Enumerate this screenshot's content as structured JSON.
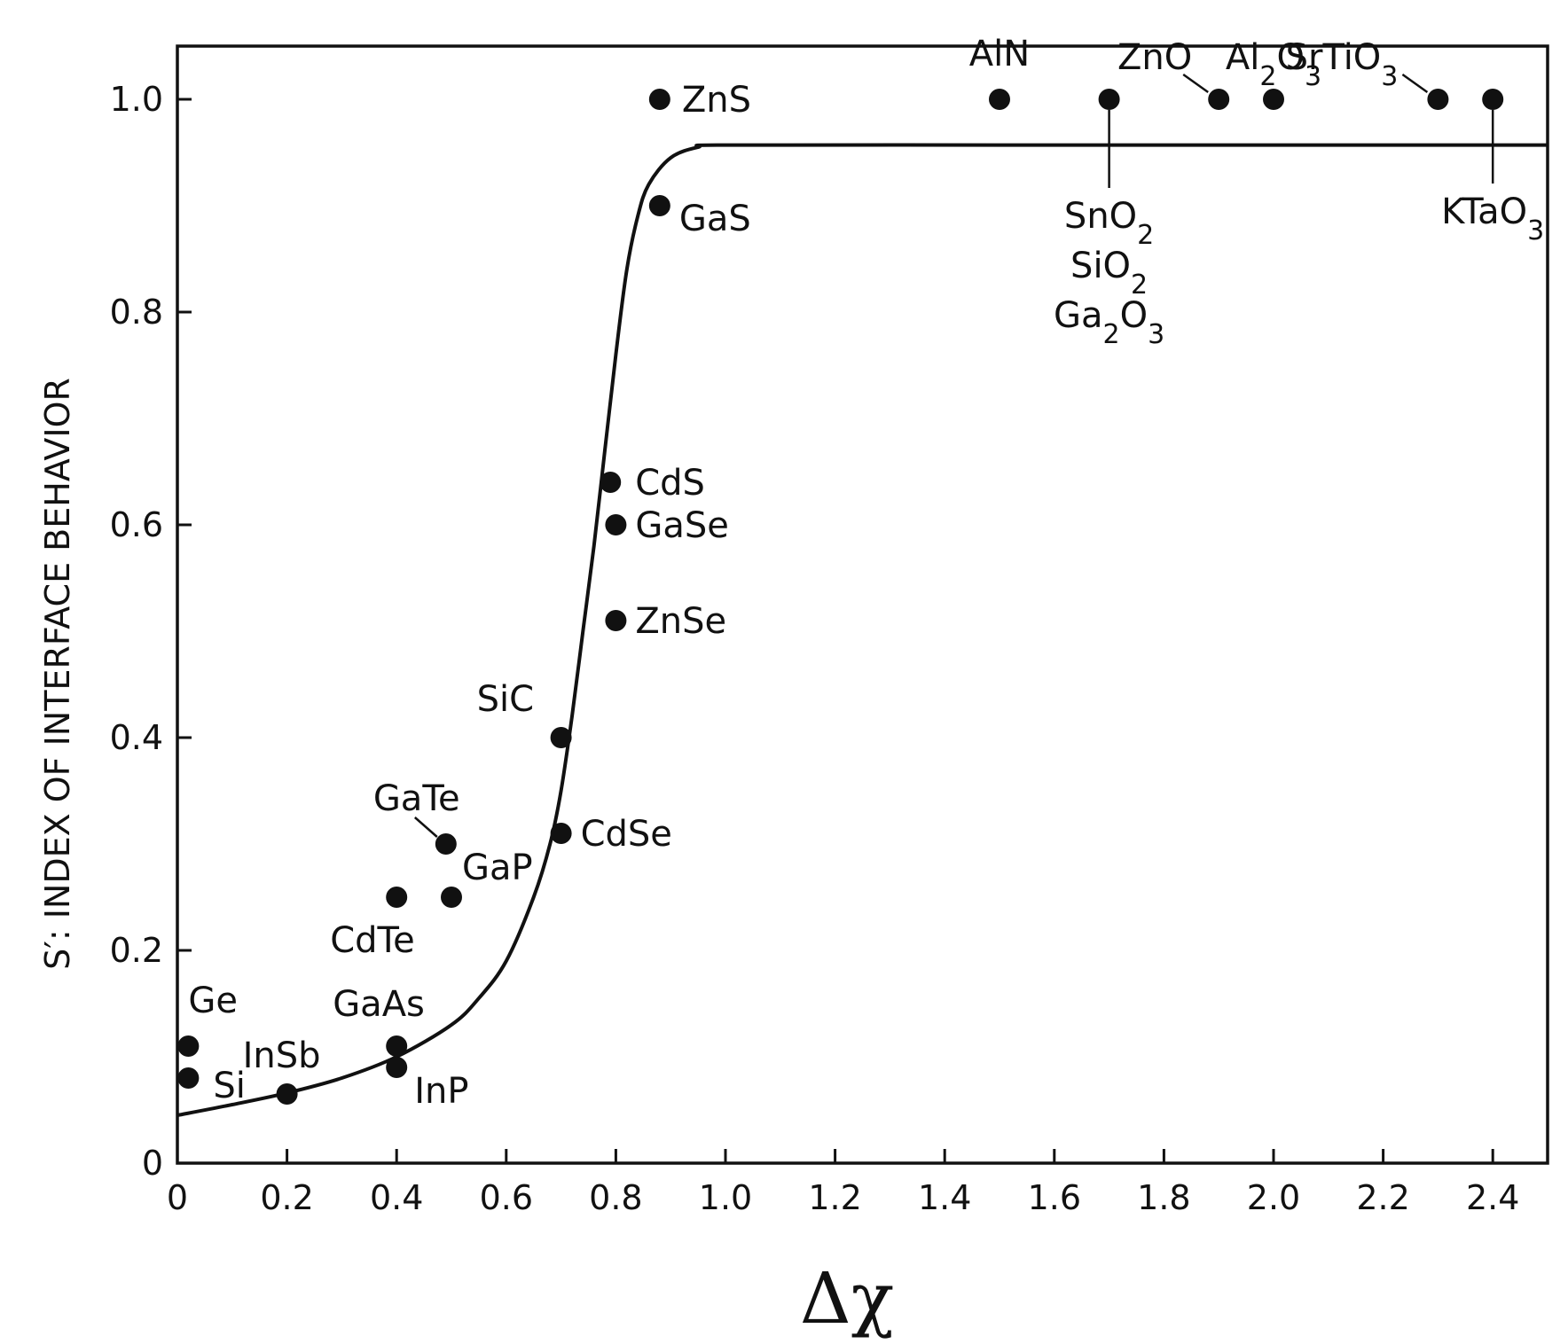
{
  "chart_data": {
    "type": "scatter",
    "xlabel": "Δχ",
    "ylabel": "S′: INDEX OF INTERFACE BEHAVIOR",
    "xlim": [
      0,
      2.5
    ],
    "ylim": [
      0,
      1.05
    ],
    "xticks": [
      "0",
      "0.2",
      "0.4",
      "0.6",
      "0.8",
      "1.0",
      "1.2",
      "1.4",
      "1.6",
      "1.8",
      "2.0",
      "2.2",
      "2.4"
    ],
    "yticks": [
      "0",
      "0.2",
      "0.4",
      "0.6",
      "0.8",
      "1.0"
    ],
    "points": [
      {
        "label": "Ge",
        "x": 0.02,
        "y": 0.11
      },
      {
        "label": "Si",
        "x": 0.02,
        "y": 0.08
      },
      {
        "label": "InSb",
        "x": 0.2,
        "y": 0.065
      },
      {
        "label": "GaAs",
        "x": 0.4,
        "y": 0.11
      },
      {
        "label": "InP",
        "x": 0.4,
        "y": 0.09
      },
      {
        "label": "CdTe",
        "x": 0.4,
        "y": 0.25
      },
      {
        "label": "GaTe",
        "x": 0.49,
        "y": 0.3
      },
      {
        "label": "GaP",
        "x": 0.5,
        "y": 0.25
      },
      {
        "label": "CdSe",
        "x": 0.7,
        "y": 0.31
      },
      {
        "label": "SiC",
        "x": 0.7,
        "y": 0.4
      },
      {
        "label": "ZnSe",
        "x": 0.8,
        "y": 0.51
      },
      {
        "label": "GaSe",
        "x": 0.8,
        "y": 0.6
      },
      {
        "label": "CdS",
        "x": 0.79,
        "y": 0.64
      },
      {
        "label": "GaS",
        "x": 0.88,
        "y": 0.9
      },
      {
        "label": "ZnS",
        "x": 0.88,
        "y": 1.0
      },
      {
        "label": "AlN",
        "x": 1.5,
        "y": 1.0
      },
      {
        "label": "SnO2 / SiO2 / Ga2O3",
        "x": 1.7,
        "y": 1.0
      },
      {
        "label": "ZnO",
        "x": 1.9,
        "y": 1.0
      },
      {
        "label": "Al2O3",
        "x": 2.0,
        "y": 1.0
      },
      {
        "label": "SrTiO3",
        "x": 2.3,
        "y": 1.0
      },
      {
        "label": "KTaO3",
        "x": 2.4,
        "y": 1.0
      }
    ],
    "fit_curve": {
      "x": [
        0,
        0.1,
        0.2,
        0.3,
        0.4,
        0.5,
        0.55,
        0.6,
        0.65,
        0.68,
        0.7,
        0.72,
        0.74,
        0.76,
        0.78,
        0.8,
        0.82,
        0.84,
        0.86,
        0.9,
        0.95,
        1.0,
        1.5,
        2.0,
        2.5
      ],
      "y": [
        0.045,
        0.055,
        0.066,
        0.08,
        0.1,
        0.13,
        0.155,
        0.19,
        0.25,
        0.3,
        0.35,
        0.42,
        0.5,
        0.58,
        0.67,
        0.76,
        0.84,
        0.89,
        0.92,
        0.945,
        0.955,
        0.957,
        0.957,
        0.957,
        0.957
      ]
    },
    "grid": false
  }
}
